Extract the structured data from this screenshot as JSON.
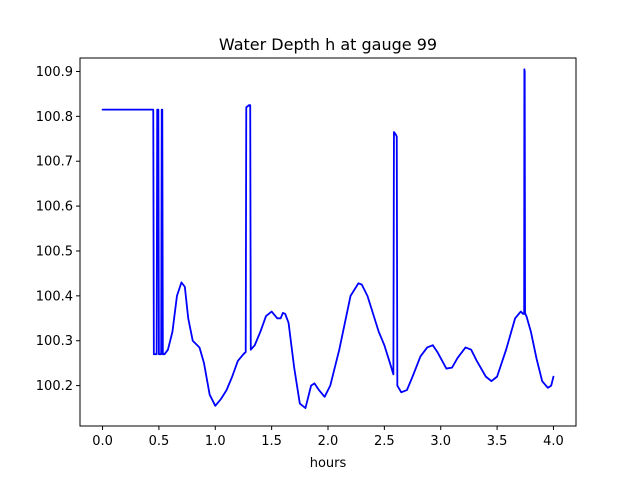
{
  "chart_data": {
    "type": "line",
    "title": "Water Depth h at gauge 99",
    "xlabel": "hours",
    "ylabel": "",
    "xlim": [
      -0.2,
      4.2
    ],
    "ylim": [
      100.11,
      100.93
    ],
    "xticks": [
      0.0,
      0.5,
      1.0,
      1.5,
      2.0,
      2.5,
      3.0,
      3.5,
      4.0
    ],
    "xtick_labels": [
      "0.0",
      "0.5",
      "1.0",
      "1.5",
      "2.0",
      "2.5",
      "3.0",
      "3.5",
      "4.0"
    ],
    "yticks": [
      100.2,
      100.3,
      100.4,
      100.5,
      100.6,
      100.7,
      100.8,
      100.9
    ],
    "ytick_labels": [
      "100.2",
      "100.3",
      "100.4",
      "100.5",
      "100.6",
      "100.7",
      "100.8",
      "100.9"
    ],
    "grid": false,
    "series": [
      {
        "color": "#0000ff",
        "x": [
          0.0,
          0.3,
          0.45,
          0.455,
          0.47,
          0.48,
          0.485,
          0.495,
          0.5,
          0.505,
          0.52,
          0.525,
          0.53,
          0.535,
          0.54,
          0.545,
          0.55,
          0.58,
          0.62,
          0.66,
          0.7,
          0.73,
          0.76,
          0.8,
          0.86,
          0.9,
          0.95,
          1.0,
          1.05,
          1.1,
          1.15,
          1.2,
          1.25,
          1.27,
          1.275,
          1.3,
          1.31,
          1.315,
          1.35,
          1.4,
          1.45,
          1.5,
          1.55,
          1.58,
          1.6,
          1.62,
          1.65,
          1.7,
          1.75,
          1.8,
          1.85,
          1.88,
          1.92,
          1.97,
          2.02,
          2.1,
          2.2,
          2.27,
          2.3,
          2.35,
          2.45,
          2.5,
          2.55,
          2.58,
          2.585,
          2.6,
          2.61,
          2.615,
          2.65,
          2.7,
          2.75,
          2.82,
          2.88,
          2.93,
          2.97,
          3.05,
          3.1,
          3.15,
          3.22,
          3.27,
          3.32,
          3.4,
          3.45,
          3.5,
          3.58,
          3.66,
          3.71,
          3.73,
          3.74,
          3.742,
          3.745,
          3.748,
          3.75,
          3.76,
          3.8,
          3.85,
          3.9,
          3.95,
          3.98,
          4.0
        ],
        "y": [
          100.815,
          100.815,
          100.815,
          100.27,
          100.27,
          100.27,
          100.815,
          100.815,
          100.27,
          100.27,
          100.27,
          100.815,
          100.815,
          100.27,
          100.27,
          100.27,
          100.27,
          100.28,
          100.32,
          100.4,
          100.43,
          100.42,
          100.35,
          100.3,
          100.285,
          100.25,
          100.18,
          100.155,
          100.17,
          100.19,
          100.22,
          100.255,
          100.27,
          100.275,
          100.82,
          100.825,
          100.825,
          100.28,
          100.29,
          100.32,
          100.355,
          100.365,
          100.35,
          100.35,
          100.362,
          100.36,
          100.34,
          100.24,
          100.16,
          100.15,
          100.2,
          100.205,
          100.19,
          100.175,
          100.2,
          100.28,
          100.4,
          100.428,
          100.425,
          100.4,
          100.32,
          100.29,
          100.25,
          100.225,
          100.765,
          100.76,
          100.755,
          100.2,
          100.185,
          100.19,
          100.22,
          100.265,
          100.285,
          100.29,
          100.275,
          100.238,
          100.24,
          100.262,
          100.285,
          100.28,
          100.255,
          100.22,
          100.21,
          100.22,
          100.28,
          100.35,
          100.365,
          100.36,
          100.36,
          100.905,
          100.9,
          100.36,
          100.36,
          100.355,
          100.32,
          100.26,
          100.21,
          100.195,
          100.2,
          100.22
        ]
      }
    ]
  }
}
